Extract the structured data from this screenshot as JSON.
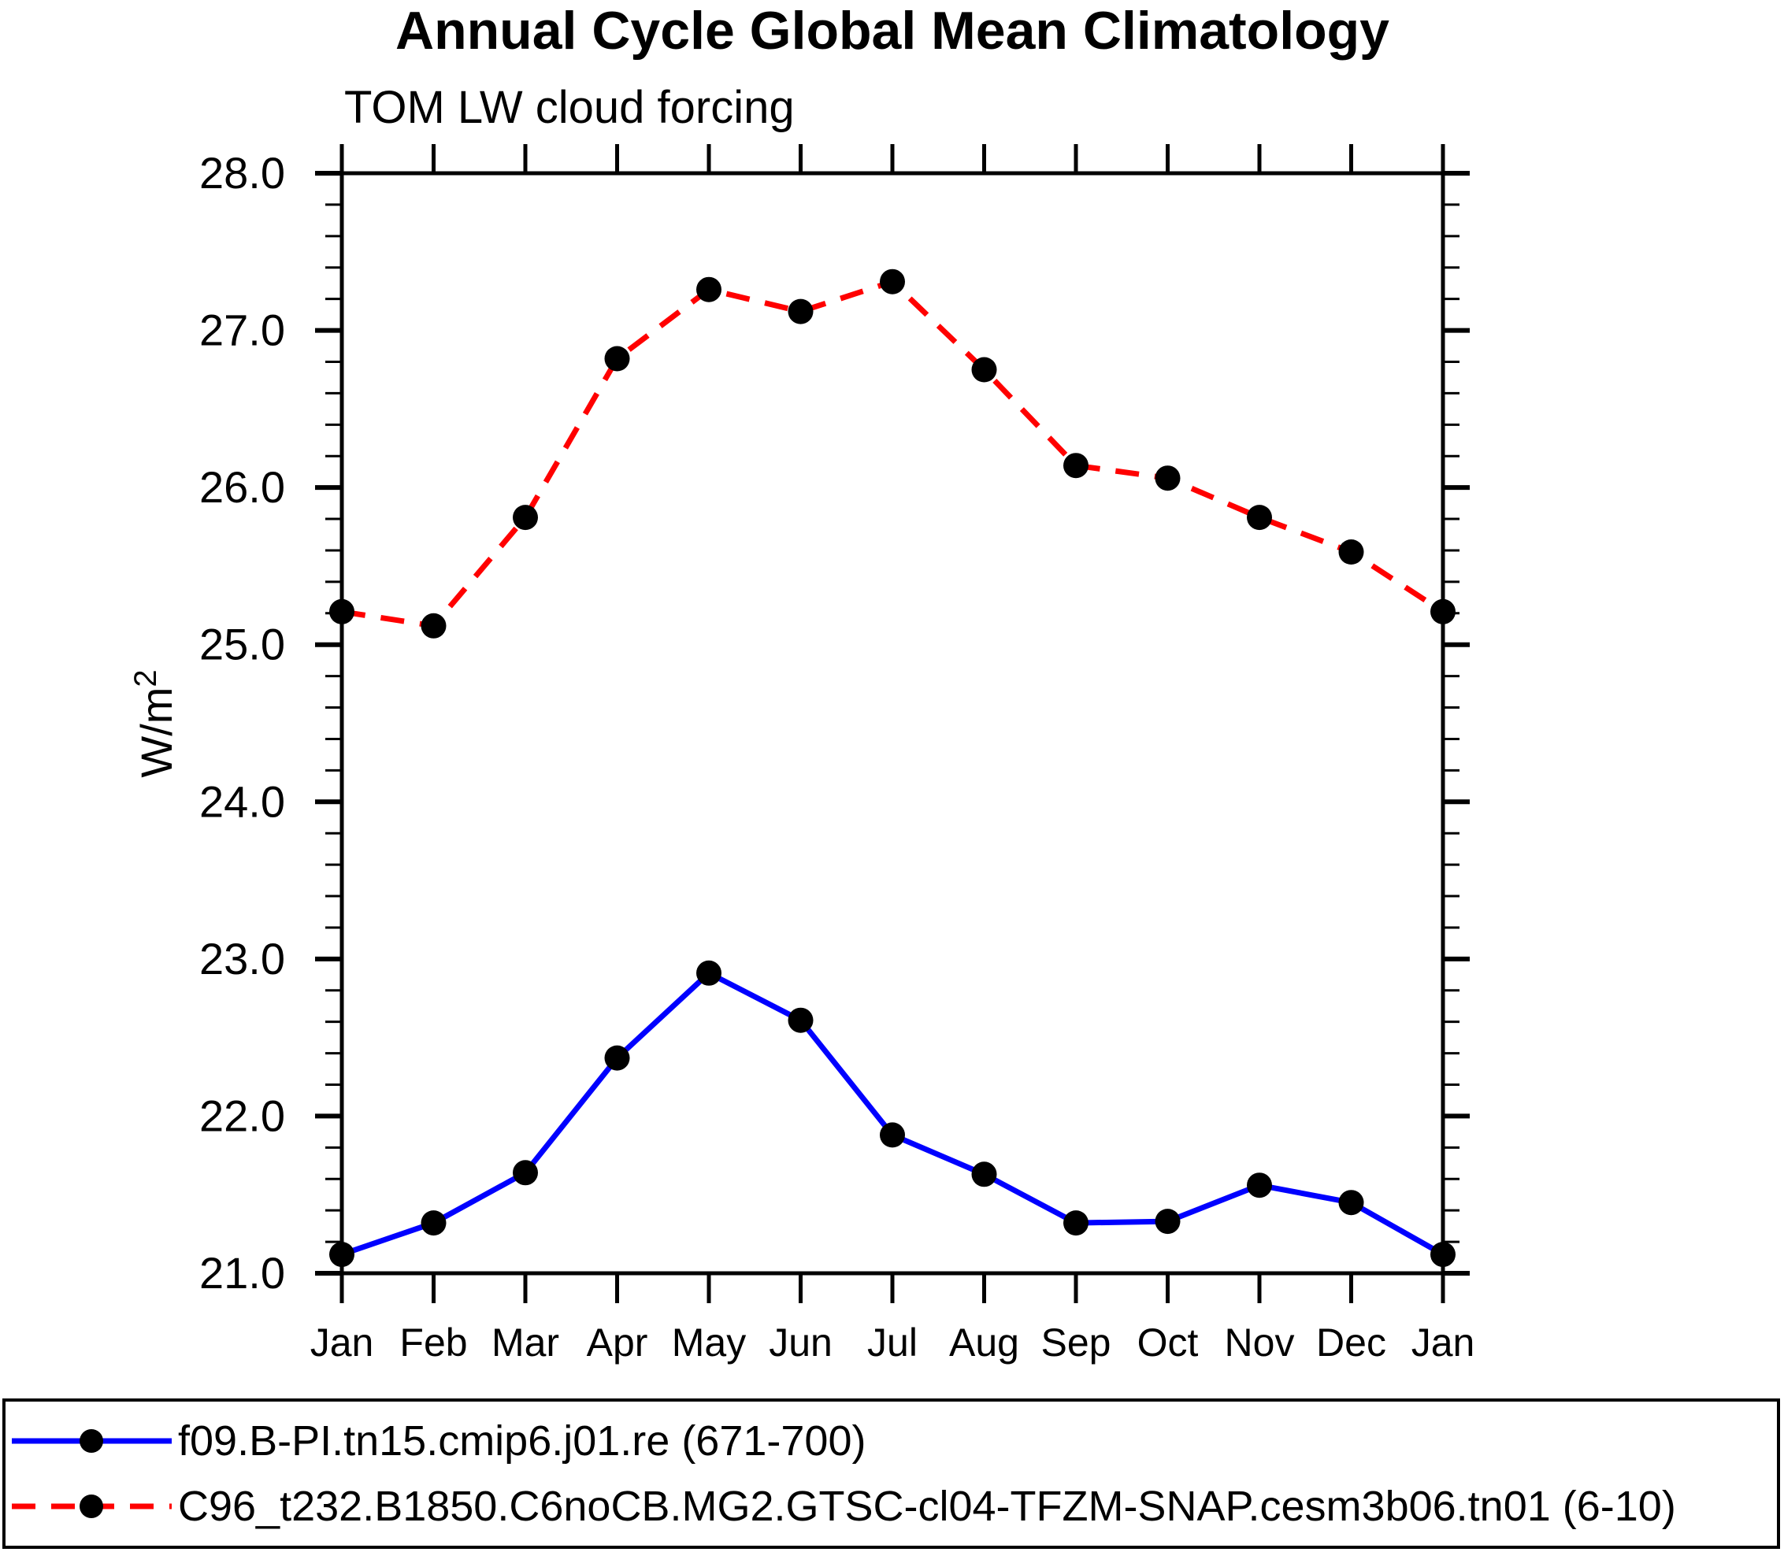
{
  "page": {
    "background_color": "#ffffff",
    "text_color": "#000000"
  },
  "chart_data": {
    "type": "line",
    "title": "Annual Cycle Global Mean Climatology",
    "subtitle": "TOM LW cloud forcing",
    "ylabel": "W/m^2",
    "ylabel_base": "W/m",
    "ylabel_sup": "2",
    "categories": [
      "Jan",
      "Feb",
      "Mar",
      "Apr",
      "May",
      "Jun",
      "Jul",
      "Aug",
      "Sep",
      "Oct",
      "Nov",
      "Dec",
      "Jan"
    ],
    "ylim": [
      21.0,
      28.0
    ],
    "ytick_major_step": 1.0,
    "ytick_minor_step": 0.2,
    "grid": false,
    "legend_position": "bottom",
    "series": [
      {
        "name": "f09.B-PI.tn15.cmip6.j01.re (671-700)",
        "color": "#0000ff",
        "line_style": "solid",
        "marker": "filled-circle",
        "marker_color": "#000000",
        "values": [
          21.12,
          21.32,
          21.64,
          22.37,
          22.91,
          22.61,
          21.88,
          21.63,
          21.32,
          21.33,
          21.56,
          21.45,
          21.12
        ]
      },
      {
        "name": "C96_t232.B1850.C6noCB.MG2.GTSC-cl04-TFZM-SNAP.cesm3b06.tn01 (6-10)",
        "color": "#ff0000",
        "line_style": "dashed",
        "marker": "filled-circle",
        "marker_color": "#000000",
        "values": [
          25.21,
          25.12,
          25.81,
          26.82,
          27.26,
          27.12,
          27.31,
          26.75,
          26.14,
          26.06,
          25.81,
          25.59,
          25.21
        ]
      }
    ]
  }
}
